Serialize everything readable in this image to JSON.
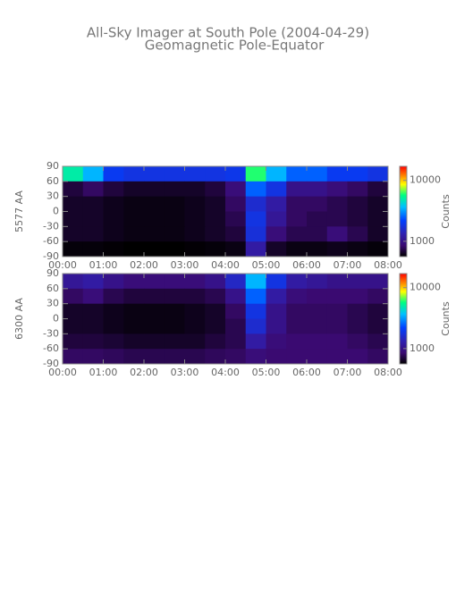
{
  "title": "All-Sky Imager at South Pole (2004-04-29)",
  "subtitle": "Geomagnetic Pole-Equator",
  "chart_data": [
    {
      "type": "heatmap",
      "ylabel": "5577 AA",
      "zlabel": "Counts",
      "zscale": "log",
      "xbins": [
        0,
        0.5,
        1,
        1.5,
        2,
        2.5,
        3,
        3.5,
        4,
        4.5,
        5,
        5.5,
        6,
        6.5,
        7,
        7.5,
        8
      ],
      "ybins": [
        90,
        60,
        30,
        0,
        -30,
        -60,
        -90
      ],
      "z": [
        [
          5000,
          3500,
          2000,
          1800,
          1800,
          1800,
          1800,
          1800,
          1900,
          6000,
          3500,
          2500,
          2500,
          2000,
          2000,
          1800
        ],
        [
          700,
          800,
          700,
          650,
          650,
          650,
          650,
          700,
          900,
          2500,
          1800,
          1000,
          1000,
          900,
          800,
          700
        ],
        [
          650,
          650,
          620,
          600,
          600,
          600,
          620,
          650,
          800,
          1600,
          1200,
          800,
          800,
          750,
          700,
          650
        ],
        [
          650,
          650,
          620,
          600,
          600,
          600,
          620,
          650,
          750,
          1800,
          1100,
          800,
          750,
          750,
          700,
          650
        ],
        [
          650,
          650,
          620,
          600,
          600,
          600,
          620,
          650,
          700,
          1700,
          900,
          750,
          750,
          900,
          750,
          650
        ],
        [
          580,
          580,
          570,
          560,
          560,
          560,
          570,
          580,
          600,
          1200,
          650,
          600,
          600,
          620,
          600,
          580
        ]
      ],
      "xlim": [
        0,
        8
      ],
      "xticks": [
        {
          "value": 0,
          "label": "00:00"
        },
        {
          "value": 1,
          "label": "01:00"
        },
        {
          "value": 2,
          "label": "02:00"
        },
        {
          "value": 3,
          "label": "03:00"
        },
        {
          "value": 4,
          "label": "04:00"
        },
        {
          "value": 5,
          "label": "05:00"
        },
        {
          "value": 6,
          "label": "06:00"
        },
        {
          "value": 7,
          "label": "07:00"
        },
        {
          "value": 8,
          "label": "08:00"
        }
      ],
      "ylim": [
        -90,
        90
      ],
      "yticks": [
        90,
        60,
        30,
        0,
        -30,
        -60,
        -90
      ],
      "zlim": [
        560,
        17000
      ],
      "zticks": [
        1000,
        10000
      ]
    },
    {
      "type": "heatmap",
      "ylabel": "6300 AA",
      "zlabel": "Counts",
      "zscale": "log",
      "xbins": [
        0,
        0.5,
        1,
        1.5,
        2,
        2.5,
        3,
        3.5,
        4,
        4.5,
        5,
        5.5,
        6,
        6.5,
        7,
        7.5,
        8
      ],
      "ybins": [
        90,
        60,
        30,
        0,
        -30,
        -60,
        -90
      ],
      "z": [
        [
          1100,
          1200,
          1000,
          900,
          900,
          900,
          900,
          1000,
          1500,
          3500,
          1800,
          1200,
          1100,
          1000,
          1000,
          1000
        ],
        [
          800,
          900,
          750,
          700,
          700,
          700,
          700,
          750,
          1000,
          2500,
          1200,
          900,
          850,
          850,
          850,
          800
        ],
        [
          650,
          650,
          620,
          600,
          600,
          600,
          620,
          650,
          800,
          1800,
          1000,
          800,
          800,
          800,
          750,
          700
        ],
        [
          650,
          650,
          620,
          600,
          600,
          600,
          620,
          650,
          750,
          1600,
          1000,
          800,
          800,
          800,
          750,
          700
        ],
        [
          700,
          700,
          680,
          650,
          650,
          650,
          650,
          700,
          750,
          1200,
          900,
          850,
          850,
          850,
          800,
          750
        ],
        [
          800,
          800,
          780,
          750,
          750,
          750,
          750,
          780,
          800,
          900,
          850,
          850,
          850,
          850,
          850,
          800
        ]
      ],
      "xlim": [
        0,
        8
      ],
      "xticks": [
        {
          "value": 0,
          "label": "00:00"
        },
        {
          "value": 1,
          "label": "01:00"
        },
        {
          "value": 2,
          "label": "02:00"
        },
        {
          "value": 3,
          "label": "03:00"
        },
        {
          "value": 4,
          "label": "04:00"
        },
        {
          "value": 5,
          "label": "05:00"
        },
        {
          "value": 6,
          "label": "06:00"
        },
        {
          "value": 7,
          "label": "07:00"
        },
        {
          "value": 8,
          "label": "08:00"
        }
      ],
      "ylim": [
        -90,
        90
      ],
      "yticks": [
        90,
        60,
        30,
        0,
        -30,
        -60,
        -90
      ],
      "zlim": [
        560,
        17000
      ],
      "zticks": [
        1000,
        10000
      ]
    }
  ]
}
